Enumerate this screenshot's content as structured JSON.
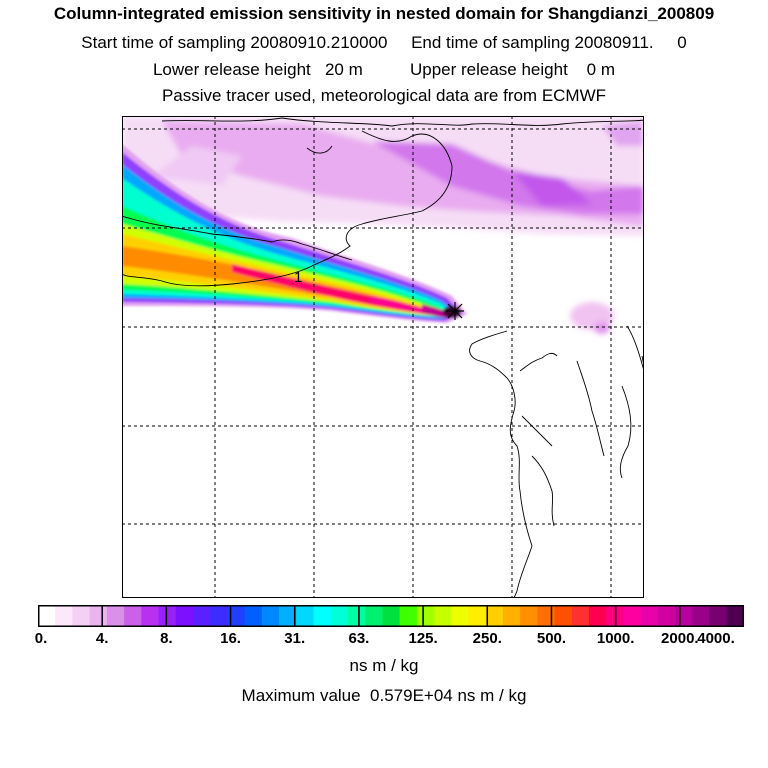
{
  "header": {
    "title": "Column-integrated emission sensitivity in nested domain for Shangdianzi_200809",
    "line2": "Start time of sampling 20080910.210000     End time of sampling 20080911.     0",
    "line3": "Lower release height   20 m          Upper release height    0 m",
    "line4": "Passive tracer used, meteorological data are from ECMWF"
  },
  "map": {
    "contour_label": "1",
    "plume_colors": [
      "#f2c8f2",
      "#d866e8",
      "#8800ff",
      "#00a0ff",
      "#00ffd8",
      "#00ff40",
      "#c8ff00",
      "#ffd000",
      "#ff8000",
      "#ff0060",
      "#a00080",
      "#2a0020"
    ]
  },
  "colorbar": {
    "colors": [
      "#ffffff",
      "#fbe8fb",
      "#f4d0f4",
      "#eab4ee",
      "#d890e8",
      "#cc60e8",
      "#b830f0",
      "#9820f8",
      "#7c10ff",
      "#5a20ff",
      "#3c2cff",
      "#2040ff",
      "#0060ff",
      "#0088ff",
      "#00b0ff",
      "#00d8ff",
      "#00ffff",
      "#00ffd8",
      "#00ffa0",
      "#00f070",
      "#00e040",
      "#40ff00",
      "#a0ff00",
      "#c8ff00",
      "#eeff00",
      "#ffee00",
      "#ffd000",
      "#ffb000",
      "#ff9000",
      "#ff7000",
      "#ff5000",
      "#ff3030",
      "#ff0050",
      "#ff0080",
      "#ff00a0",
      "#e800a8",
      "#d000a0",
      "#b8009c",
      "#980088",
      "#760070",
      "#500050"
    ],
    "ticks": [
      "0.",
      "4.",
      "8.",
      "16.",
      "31.",
      "63.",
      "125.",
      "250.",
      "500.",
      "1000.",
      "2000.",
      "4000."
    ],
    "units": "ns m / kg"
  },
  "footer": {
    "max_value": "Maximum value  0.579E+04 ns m / kg"
  }
}
